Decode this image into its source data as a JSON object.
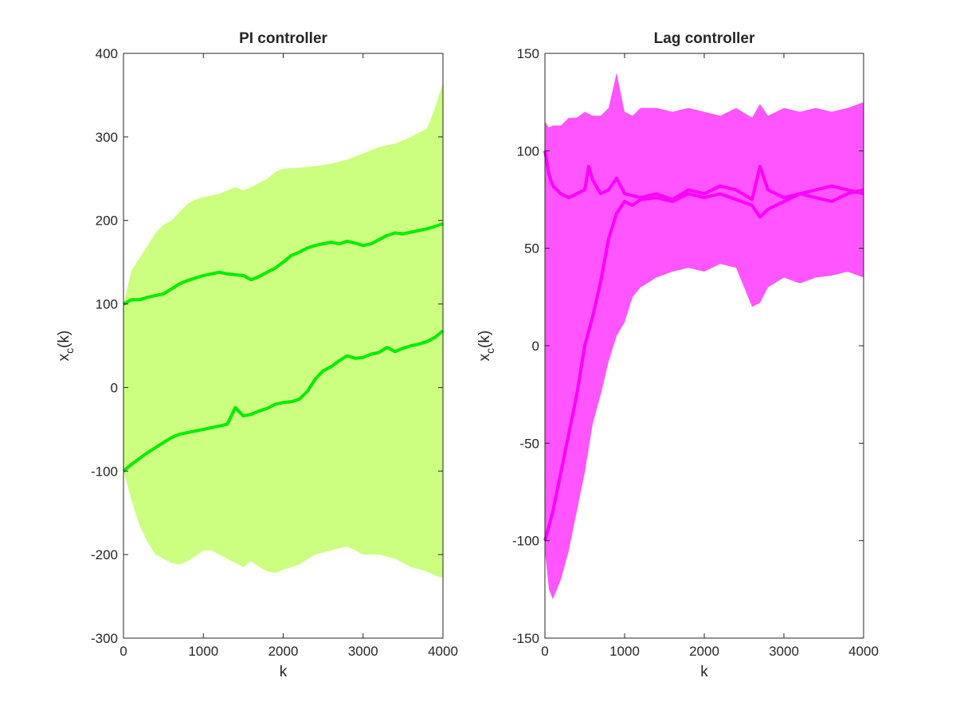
{
  "colors": {
    "pi_band": "#ccff80",
    "pi_line": "#00ee00",
    "lag_band": "#ff55ff",
    "lag_line": "#ff00ff"
  },
  "chart_data": [
    {
      "type": "area",
      "title": "PI controller",
      "xlabel": "k",
      "ylabel_base": "x",
      "ylabel_sub": "c",
      "ylabel_tail": "(k)",
      "xlim": [
        0,
        4000
      ],
      "ylim": [
        -300,
        400
      ],
      "xticks": [
        0,
        1000,
        2000,
        3000,
        4000
      ],
      "yticks": [
        -300,
        -200,
        -100,
        0,
        100,
        200,
        300,
        400
      ],
      "xtick_labels": [
        "0",
        "1000",
        "2000",
        "3000",
        "4000"
      ],
      "ytick_labels": [
        "-300",
        "-200",
        "-100",
        "0",
        "100",
        "200",
        "300",
        "400"
      ],
      "grid": false,
      "band": {
        "x": [
          0,
          100,
          200,
          300,
          400,
          500,
          600,
          700,
          800,
          900,
          1000,
          1100,
          1200,
          1300,
          1400,
          1500,
          1600,
          1700,
          1800,
          1900,
          2000,
          2200,
          2400,
          2600,
          2800,
          3000,
          3200,
          3400,
          3600,
          3800,
          3900,
          4000
        ],
        "upper": [
          100,
          140,
          155,
          170,
          185,
          195,
          200,
          210,
          220,
          225,
          228,
          230,
          232,
          236,
          240,
          236,
          240,
          245,
          250,
          258,
          262,
          263,
          265,
          268,
          273,
          280,
          288,
          292,
          300,
          310,
          335,
          365
        ],
        "lower": [
          -100,
          -135,
          -165,
          -185,
          -200,
          -205,
          -210,
          -212,
          -208,
          -202,
          -195,
          -195,
          -200,
          -205,
          -210,
          -215,
          -208,
          -215,
          -220,
          -222,
          -218,
          -212,
          -200,
          -195,
          -190,
          -200,
          -200,
          -205,
          -215,
          -220,
          -225,
          -228
        ]
      },
      "series": [
        {
          "x": [
            0,
            100,
            200,
            300,
            400,
            500,
            600,
            700,
            800,
            900,
            1000,
            1100,
            1200,
            1300,
            1400,
            1500,
            1600,
            1700,
            1800,
            1900,
            2000,
            2100,
            2200,
            2300,
            2400,
            2500,
            2600,
            2700,
            2800,
            2900,
            3000,
            3100,
            3200,
            3300,
            3400,
            3500,
            3600,
            3700,
            3800,
            3900,
            4000
          ],
          "values": [
            100,
            105,
            105,
            108,
            110,
            112,
            118,
            124,
            128,
            131,
            134,
            136,
            138,
            136,
            135,
            134,
            129,
            133,
            138,
            143,
            150,
            158,
            162,
            167,
            170,
            172,
            174,
            172,
            175,
            173,
            170,
            172,
            177,
            182,
            185,
            184,
            186,
            188,
            190,
            193,
            196
          ]
        },
        {
          "x": [
            0,
            100,
            200,
            300,
            400,
            500,
            600,
            700,
            800,
            900,
            1000,
            1100,
            1200,
            1300,
            1400,
            1500,
            1600,
            1700,
            1800,
            1900,
            2000,
            2100,
            2200,
            2300,
            2400,
            2500,
            2600,
            2700,
            2800,
            2900,
            3000,
            3100,
            3200,
            3300,
            3400,
            3500,
            3600,
            3700,
            3800,
            3900,
            4000
          ],
          "values": [
            -100,
            -92,
            -85,
            -78,
            -72,
            -66,
            -60,
            -56,
            -54,
            -52,
            -50,
            -48,
            -46,
            -44,
            -24,
            -34,
            -32,
            -28,
            -25,
            -20,
            -18,
            -17,
            -14,
            -5,
            10,
            20,
            25,
            32,
            38,
            35,
            36,
            40,
            42,
            48,
            43,
            47,
            50,
            52,
            55,
            60,
            68
          ]
        }
      ]
    },
    {
      "type": "area",
      "title": "Lag controller",
      "xlabel": "k",
      "ylabel_base": "x",
      "ylabel_sub": "c",
      "ylabel_tail": "(k)",
      "xlim": [
        0,
        4000
      ],
      "ylim": [
        -150,
        150
      ],
      "xticks": [
        0,
        1000,
        2000,
        3000,
        4000
      ],
      "yticks": [
        -150,
        -100,
        -50,
        0,
        50,
        100,
        150
      ],
      "xtick_labels": [
        "0",
        "1000",
        "2000",
        "3000",
        "4000"
      ],
      "ytick_labels": [
        "-150",
        "-100",
        "-50",
        "0",
        "50",
        "100",
        "150"
      ],
      "grid": false,
      "band": {
        "x": [
          0,
          50,
          100,
          200,
          300,
          400,
          500,
          600,
          700,
          800,
          900,
          1000,
          1100,
          1200,
          1400,
          1600,
          1800,
          2000,
          2200,
          2400,
          2600,
          2700,
          2800,
          3000,
          3200,
          3400,
          3600,
          3800,
          4000
        ],
        "upper": [
          115,
          112,
          113,
          113,
          117,
          117,
          120,
          118,
          118,
          122,
          140,
          120,
          118,
          122,
          122,
          120,
          122,
          120,
          118,
          122,
          117,
          124,
          118,
          122,
          120,
          122,
          120,
          122,
          125
        ],
        "lower": [
          -105,
          -125,
          -130,
          -120,
          -105,
          -85,
          -65,
          -40,
          -25,
          -8,
          5,
          12,
          25,
          30,
          35,
          38,
          40,
          38,
          42,
          40,
          20,
          22,
          30,
          35,
          32,
          35,
          36,
          38,
          35
        ]
      },
      "series": [
        {
          "x": [
            0,
            50,
            100,
            200,
            300,
            400,
            500,
            550,
            600,
            700,
            800,
            900,
            1000,
            1200,
            1400,
            1600,
            1800,
            2000,
            2200,
            2400,
            2600,
            2700,
            2800,
            3000,
            3200,
            3400,
            3600,
            3800,
            4000
          ],
          "values": [
            100,
            88,
            82,
            78,
            76,
            78,
            80,
            92,
            85,
            78,
            80,
            86,
            78,
            76,
            78,
            75,
            80,
            78,
            82,
            80,
            75,
            92,
            80,
            76,
            78,
            80,
            82,
            80,
            78
          ]
        },
        {
          "x": [
            0,
            100,
            200,
            300,
            400,
            500,
            600,
            700,
            800,
            900,
            1000,
            1100,
            1200,
            1400,
            1600,
            1800,
            2000,
            2200,
            2400,
            2600,
            2700,
            2800,
            3000,
            3200,
            3400,
            3600,
            3800,
            4000
          ],
          "values": [
            -100,
            -85,
            -65,
            -45,
            -25,
            0,
            15,
            33,
            55,
            68,
            74,
            72,
            75,
            76,
            74,
            78,
            76,
            78,
            75,
            72,
            66,
            70,
            74,
            78,
            76,
            74,
            78,
            80
          ]
        }
      ]
    }
  ]
}
